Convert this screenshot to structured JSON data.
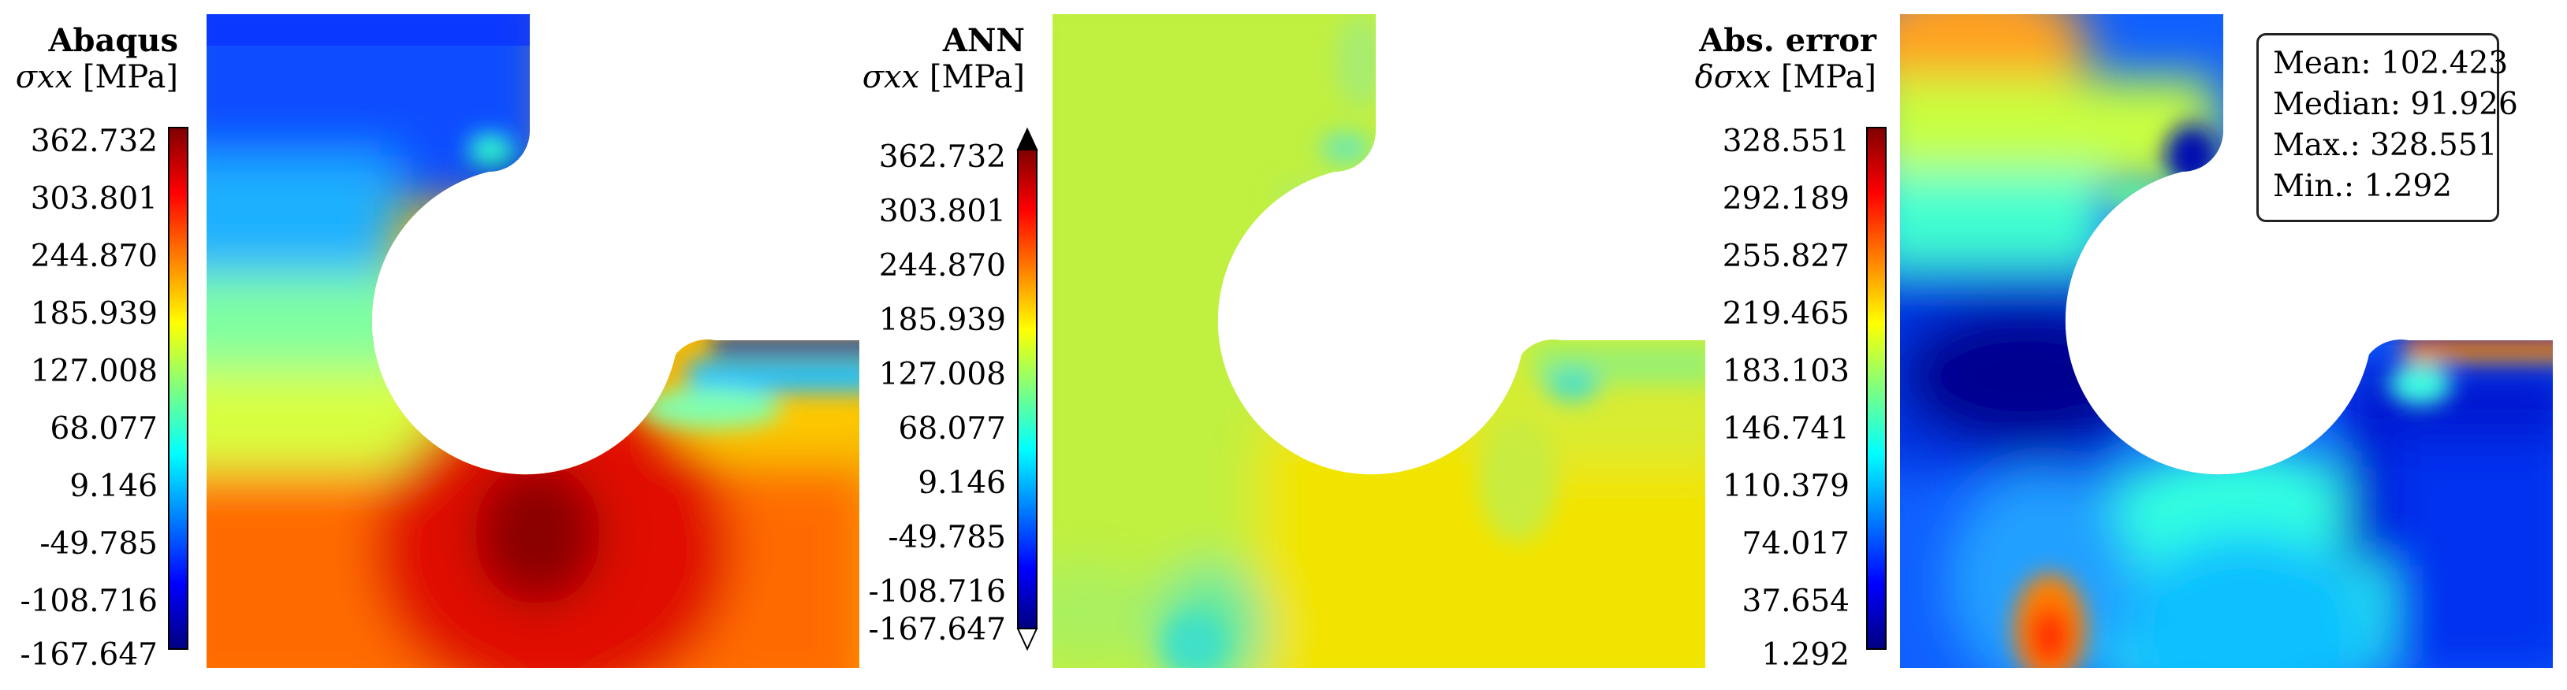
{
  "panels": [
    {
      "title": "Abaqus",
      "subtitle_symbol": "σxx",
      "subtitle_unit": "[MPa]",
      "colorbar_ticks": [
        "362.732",
        "303.801",
        "244.870",
        "185.939",
        "127.008",
        "68.077",
        "9.146",
        "-49.785",
        "-108.716",
        "-167.647"
      ]
    },
    {
      "title": "ANN",
      "subtitle_symbol": "σxx",
      "subtitle_unit": "[MPa]",
      "colorbar_ticks": [
        "362.732",
        "303.801",
        "244.870",
        "185.939",
        "127.008",
        "68.077",
        "9.146",
        "-49.785",
        "-108.716",
        "-167.647"
      ]
    },
    {
      "title": "Abs. error",
      "subtitle_symbol": "δσxx",
      "subtitle_unit": "[MPa]",
      "colorbar_ticks": [
        "328.551",
        "292.189",
        "255.827",
        "219.465",
        "183.103",
        "146.741",
        "110.379",
        "74.017",
        "37.654",
        "1.292"
      ]
    }
  ],
  "stats": {
    "mean": "Mean: 102.423",
    "median": "Median: 91.926",
    "max": "Max.: 328.551",
    "min": "Min.: 1.292"
  },
  "colormap": [
    "#00007f",
    "#0000ff",
    "#007fff",
    "#00ffff",
    "#7fff7f",
    "#ffff00",
    "#ff7f00",
    "#ff0000",
    "#7f0000"
  ]
}
